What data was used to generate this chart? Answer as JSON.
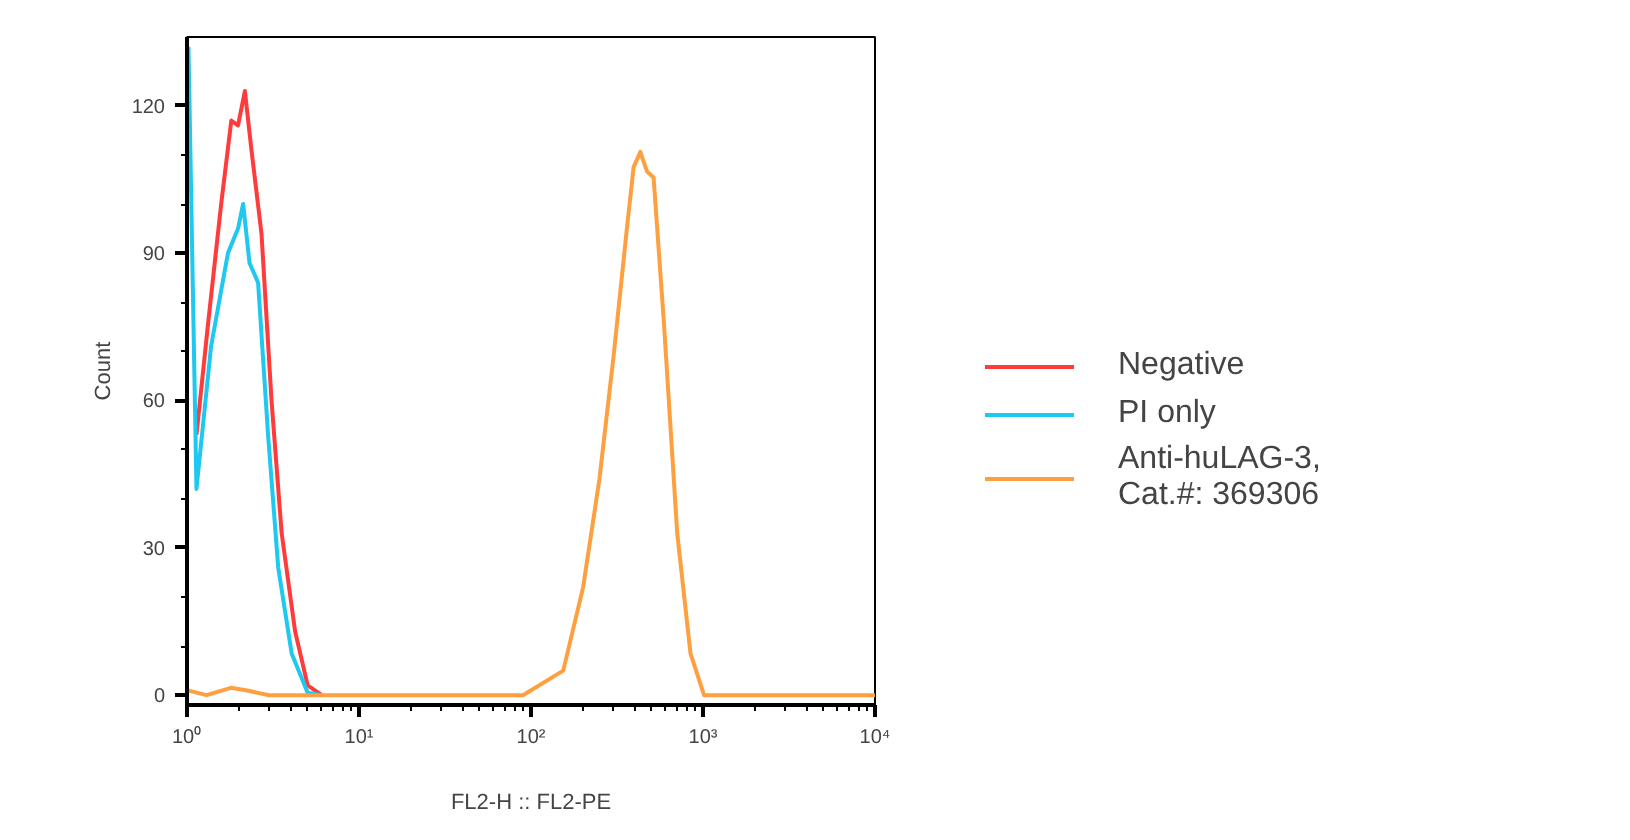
{
  "chart_data": {
    "type": "line",
    "xlabel": "FL2-H :: FL2-PE",
    "ylabel": "Count",
    "log": "x",
    "xlim": [
      1,
      10000
    ],
    "xticks": [
      {
        "value": 1,
        "label": "10⁰"
      },
      {
        "value": 10,
        "label": "10¹"
      },
      {
        "value": 100,
        "label": "10²"
      },
      {
        "value": 1000,
        "label": "10³"
      },
      {
        "value": 10000,
        "label": "10⁴"
      }
    ],
    "ylim": [
      -2,
      134
    ],
    "yticks": [
      0,
      30,
      60,
      90,
      120
    ],
    "grid": false,
    "legend": "right",
    "marker": "none",
    "line_style": "solid",
    "series": [
      {
        "name": "Negative",
        "color": "#ff3b3b",
        "x": [
          1.135,
          1.32,
          1.58,
          1.81,
          1.98,
          2.17,
          2.37,
          2.71,
          3.1,
          3.55,
          4.25,
          5.03,
          6.08
        ],
        "values": [
          53,
          75,
          100,
          117,
          116,
          123,
          111,
          94,
          60,
          33,
          13,
          2,
          0
        ]
      },
      {
        "name": "PI only",
        "color": "#1ec8f0",
        "x": [
          1.02,
          1.135,
          1.38,
          1.73,
          1.98,
          2.12,
          2.31,
          2.59,
          2.96,
          3.39,
          4.06,
          5.03,
          6.08
        ],
        "values": [
          132,
          42,
          71,
          90,
          95,
          100,
          88,
          84,
          53,
          26,
          8.5,
          0.5,
          0
        ]
      },
      {
        "name": "Anti-huLAG-3,\nCat.#: 369306",
        "color": "#ffa040",
        "x": [
          1,
          1.3,
          1.8,
          2.2,
          3,
          89.8,
          154,
          201,
          250,
          302,
          361,
          395,
          432,
          473,
          516,
          592,
          708,
          846,
          1014,
          10000
        ],
        "values": [
          1,
          0,
          1.5,
          1,
          0,
          0,
          5,
          22,
          44,
          69,
          95,
          107.5,
          110.6,
          106.6,
          105.4,
          76,
          33,
          8.5,
          0,
          0
        ]
      }
    ]
  }
}
